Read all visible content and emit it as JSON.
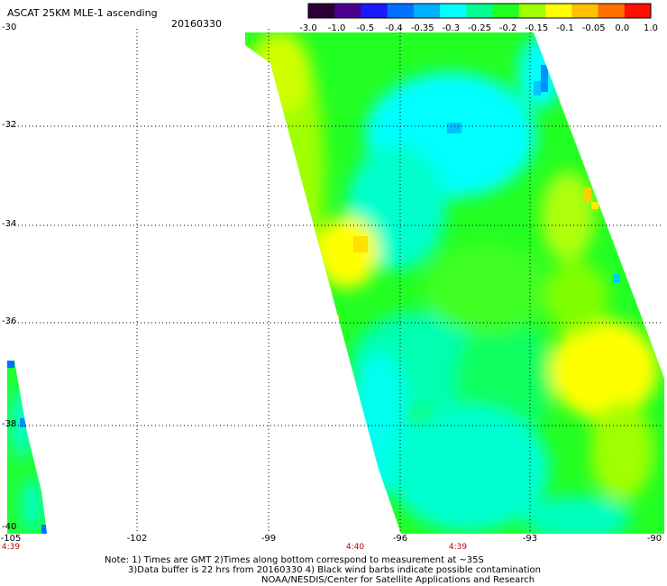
{
  "header": {
    "title": "ASCAT 25KM MLE-1 ascending",
    "date": "20160330"
  },
  "colorbar": {
    "labels": [
      "-3.0",
      "-1.0",
      "-0.5",
      "-0.4",
      "-0.35",
      "-0.3",
      "-0.25",
      "-0.2",
      "-0.15",
      "-0.1",
      "-0.05",
      "0.0",
      "1.0"
    ],
    "colors": [
      "#2a0036",
      "#4b0090",
      "#1a1aff",
      "#0070ff",
      "#00b0ff",
      "#00ffff",
      "#00ff90",
      "#20ff20",
      "#a0ff00",
      "#ffff00",
      "#ffc000",
      "#ff7000",
      "#ff1000"
    ]
  },
  "axes": {
    "lat_labels": [
      "-30",
      "-32",
      "-34",
      "-36",
      "-38",
      "-40"
    ],
    "lon_labels": [
      "-105",
      "-102",
      "-99",
      "-96",
      "-93",
      "-90"
    ],
    "time_labels": [
      "4:39",
      "4:40",
      "4:39"
    ]
  },
  "footer": {
    "line1": "Note: 1) Times are GMT 2)Times along bottom correspond to measurement at ~35S",
    "line2": "3)Data buffer is 22 hrs from 20160330 4) Black wind barbs indicate possible contamination",
    "line3": "NOAA/NESDIS/Center for Satellite Applications and Research"
  }
}
